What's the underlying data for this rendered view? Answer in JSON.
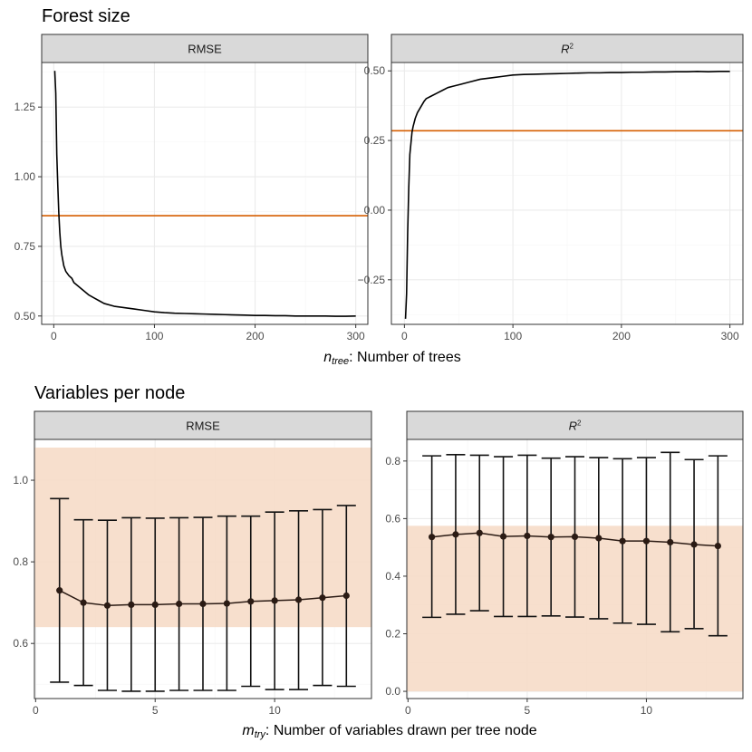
{
  "chart_data": [
    {
      "title": "Forest size",
      "xlabel_main": "n",
      "xlabel_sub": "tree",
      "xlabel_rest": ":  Number of trees",
      "panels": [
        {
          "type": "line",
          "strip": "RMSE",
          "xlim": [
            -12,
            312
          ],
          "ylim": [
            0.47,
            1.41
          ],
          "xticks": [
            0,
            100,
            200,
            300
          ],
          "yticks": [
            0.5,
            0.75,
            1.0,
            1.25
          ],
          "ytick_labels": [
            "0.50",
            "0.75",
            "1.00",
            "1.25"
          ],
          "reference_line": 0.86,
          "reference_color": "#d55e00",
          "line_color": "#000000",
          "series": {
            "x": [
              1,
              2,
              3,
              4,
              5,
              6,
              7,
              8,
              10,
              12,
              15,
              18,
              20,
              25,
              30,
              35,
              40,
              45,
              50,
              60,
              70,
              80,
              90,
              100,
              110,
              120,
              130,
              140,
              150,
              160,
              170,
              180,
              190,
              200,
              210,
              220,
              230,
              240,
              250,
              260,
              270,
              280,
              290,
              300
            ],
            "y": [
              1.38,
              1.3,
              1.08,
              0.97,
              0.87,
              0.8,
              0.75,
              0.72,
              0.68,
              0.66,
              0.645,
              0.635,
              0.62,
              0.605,
              0.59,
              0.575,
              0.565,
              0.555,
              0.545,
              0.535,
              0.53,
              0.525,
              0.52,
              0.515,
              0.512,
              0.51,
              0.509,
              0.508,
              0.507,
              0.506,
              0.505,
              0.504,
              0.503,
              0.502,
              0.502,
              0.501,
              0.501,
              0.5,
              0.5,
              0.5,
              0.5,
              0.499,
              0.499,
              0.5
            ]
          }
        },
        {
          "type": "line",
          "strip": "R²",
          "xlim": [
            -12,
            312
          ],
          "ylim": [
            -0.41,
            0.53
          ],
          "xticks": [
            0,
            100,
            200,
            300
          ],
          "yticks": [
            -0.25,
            0.0,
            0.25,
            0.5
          ],
          "ytick_labels": [
            "−0.25",
            "0.00",
            "0.25",
            "0.50"
          ],
          "reference_line": 0.285,
          "reference_color": "#d55e00",
          "line_color": "#000000",
          "series": {
            "x": [
              1,
              2,
              3,
              4,
              5,
              6,
              7,
              8,
              10,
              12,
              15,
              18,
              20,
              25,
              30,
              35,
              40,
              45,
              50,
              60,
              70,
              80,
              90,
              100,
              110,
              120,
              130,
              140,
              150,
              160,
              170,
              180,
              190,
              200,
              210,
              220,
              230,
              240,
              250,
              260,
              270,
              280,
              290,
              300
            ],
            "y": [
              -0.39,
              -0.3,
              -0.08,
              0.08,
              0.2,
              0.24,
              0.28,
              0.3,
              0.33,
              0.35,
              0.37,
              0.39,
              0.4,
              0.41,
              0.42,
              0.43,
              0.44,
              0.445,
              0.45,
              0.46,
              0.47,
              0.475,
              0.48,
              0.485,
              0.487,
              0.488,
              0.489,
              0.49,
              0.491,
              0.492,
              0.493,
              0.493,
              0.494,
              0.494,
              0.495,
              0.495,
              0.496,
              0.496,
              0.497,
              0.497,
              0.498,
              0.497,
              0.498,
              0.498
            ]
          }
        }
      ]
    },
    {
      "title": "Variables per node",
      "xlabel_main": "m",
      "xlabel_sub": "try",
      "xlabel_rest": ":  Number of variables drawn per tree node",
      "panels": [
        {
          "type": "errorbar",
          "strip": "RMSE",
          "xlim": [
            -0.05,
            14.05
          ],
          "ylim": [
            0.465,
            1.1
          ],
          "xticks": [
            0,
            5,
            10
          ],
          "yticks": [
            0.6,
            0.8,
            1.0
          ],
          "ytick_labels": [
            "0.6",
            "0.8",
            "1.0"
          ],
          "band": [
            0.64,
            1.08
          ],
          "band_color": "#f6dcc8",
          "point_color": "#2b1b14",
          "points": {
            "x": [
              1,
              2,
              3,
              4,
              5,
              6,
              7,
              8,
              9,
              10,
              11,
              12,
              13
            ],
            "mean": [
              0.73,
              0.7,
              0.693,
              0.695,
              0.695,
              0.697,
              0.697,
              0.698,
              0.703,
              0.705,
              0.707,
              0.712,
              0.717
            ],
            "lower": [
              0.505,
              0.497,
              0.485,
              0.483,
              0.483,
              0.485,
              0.485,
              0.485,
              0.495,
              0.487,
              0.487,
              0.497,
              0.495
            ],
            "upper": [
              0.955,
              0.903,
              0.902,
              0.908,
              0.907,
              0.908,
              0.909,
              0.912,
              0.912,
              0.922,
              0.925,
              0.928,
              0.938
            ]
          }
        },
        {
          "type": "errorbar",
          "strip": "R²",
          "xlim": [
            -0.05,
            14.05
          ],
          "ylim": [
            -0.025,
            0.875
          ],
          "xticks": [
            0,
            5,
            10
          ],
          "yticks": [
            0.0,
            0.2,
            0.4,
            0.6,
            0.8
          ],
          "ytick_labels": [
            "0.0",
            "0.2",
            "0.4",
            "0.6",
            "0.8"
          ],
          "band": [
            0.0,
            0.575
          ],
          "band_color": "#f6dcc8",
          "point_color": "#2b1b14",
          "points": {
            "x": [
              1,
              2,
              3,
              4,
              5,
              6,
              7,
              8,
              9,
              10,
              11,
              12,
              13
            ],
            "mean": [
              0.536,
              0.545,
              0.55,
              0.538,
              0.54,
              0.536,
              0.537,
              0.532,
              0.522,
              0.522,
              0.518,
              0.51,
              0.505
            ],
            "lower": [
              0.257,
              0.268,
              0.28,
              0.26,
              0.26,
              0.262,
              0.258,
              0.252,
              0.237,
              0.233,
              0.207,
              0.218,
              0.193
            ],
            "upper": [
              0.818,
              0.822,
              0.82,
              0.815,
              0.82,
              0.81,
              0.815,
              0.812,
              0.808,
              0.812,
              0.83,
              0.805,
              0.818
            ]
          }
        }
      ]
    }
  ]
}
